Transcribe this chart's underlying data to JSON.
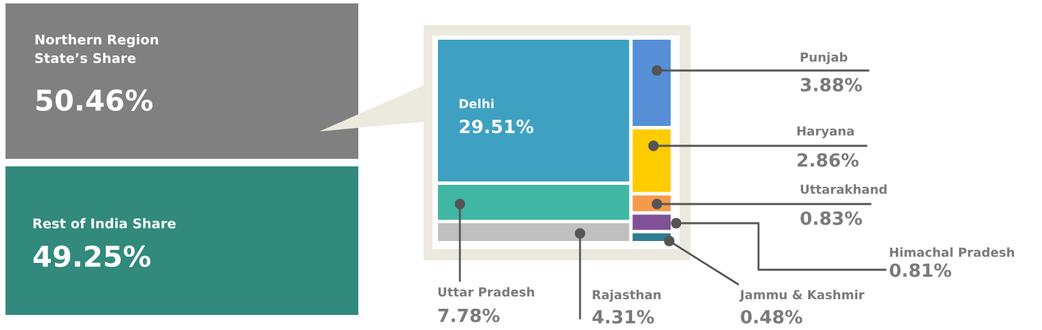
{
  "chart_data": [
    {
      "type": "other",
      "categories": [
        "Northern Region\nState’s Share",
        "Rest of India Share"
      ],
      "values": [
        50.46,
        49.25
      ],
      "value_labels": [
        "50.46%",
        "49.25%"
      ],
      "colors": [
        "#808080",
        "#318a7c"
      ]
    },
    {
      "type": "other",
      "categories": [
        "Delhi",
        "Uttar Pradesh",
        "Rajasthan",
        "Punjab",
        "Haryana",
        "Uttarakhand",
        "Himachal Pradesh",
        "Jammu & Kashmir"
      ],
      "values": [
        29.51,
        7.78,
        4.31,
        3.88,
        2.86,
        0.83,
        0.81,
        0.48
      ],
      "value_labels": [
        "29.51%",
        "7.78%",
        "4.31%",
        "3.88%",
        "2.86%",
        "0.83%",
        "0.81%",
        "0.48%"
      ],
      "colors": [
        "#3ea1c2",
        "#40b7a4",
        "#bfbfbf",
        "#568fd6",
        "#ffcc00",
        "#f59a4b",
        "#7f5197",
        "#2e7d92"
      ]
    }
  ]
}
